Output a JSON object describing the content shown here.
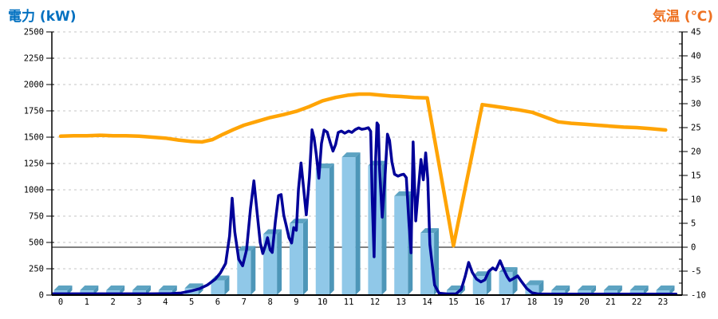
{
  "titles": {
    "left": "電力 (kW)",
    "right": "気温 (℃)"
  },
  "colors": {
    "left_title": "#0070C0",
    "right_title": "#EE7121",
    "power_line": "#000099",
    "temperature_line": "#FFA405",
    "bar_front": "#90C8E8",
    "bar_top": "#5DA3C2",
    "bar_side": "#4D96B8",
    "gridline": "#C6C6C6",
    "axis": "#000000",
    "tick_label": "#000000"
  },
  "chart_data": {
    "type": "combo",
    "title": "",
    "left_axis": {
      "title": "電力 (kW)",
      "unit": "kW",
      "min": 0,
      "max": 2500,
      "tick_step": 250,
      "ticks": [
        0,
        250,
        500,
        750,
        1000,
        1250,
        1500,
        1750,
        2000,
        2250,
        2500
      ],
      "gridlines": "dashed"
    },
    "right_axis": {
      "title": "気温 (℃)",
      "unit": "℃",
      "min": -10,
      "max": 45,
      "tick_step": 5,
      "ticks": [
        -10,
        -5,
        0,
        5,
        10,
        15,
        20,
        25,
        30,
        35,
        40,
        45
      ],
      "zero_reference_line": true
    },
    "x_axis": {
      "ticks": [
        0,
        1,
        2,
        3,
        4,
        5,
        6,
        7,
        8,
        9,
        10,
        11,
        12,
        13,
        14,
        15,
        16,
        17,
        18,
        19,
        20,
        21,
        22,
        23
      ]
    },
    "legend": "none",
    "series": [
      {
        "id": "power_bars",
        "type": "bar",
        "axis": "left",
        "unit": "kW",
        "categories": [
          0,
          1,
          2,
          3,
          4,
          5,
          6,
          7,
          8,
          9,
          10,
          11,
          12,
          13,
          14,
          15,
          16,
          17,
          18,
          19,
          20,
          21,
          22,
          23
        ],
        "values": [
          45,
          45,
          45,
          45,
          45,
          65,
          140,
          420,
          580,
          680,
          1205,
          1310,
          1230,
          940,
          590,
          45,
          180,
          220,
          95,
          45,
          45,
          45,
          45,
          45
        ]
      },
      {
        "id": "power_line",
        "type": "line",
        "axis": "left",
        "unit": "kW",
        "points": [
          [
            -0.3,
            12
          ],
          [
            0.5,
            12
          ],
          [
            1.5,
            12
          ],
          [
            2.5,
            12
          ],
          [
            3.5,
            12
          ],
          [
            4.2,
            14
          ],
          [
            4.6,
            20
          ],
          [
            5.0,
            40
          ],
          [
            5.3,
            60
          ],
          [
            5.6,
            95
          ],
          [
            5.9,
            150
          ],
          [
            6.1,
            210
          ],
          [
            6.3,
            300
          ],
          [
            6.45,
            560
          ],
          [
            6.55,
            920
          ],
          [
            6.65,
            600
          ],
          [
            6.8,
            340
          ],
          [
            6.95,
            278
          ],
          [
            7.1,
            430
          ],
          [
            7.25,
            820
          ],
          [
            7.38,
            1085
          ],
          [
            7.5,
            790
          ],
          [
            7.62,
            500
          ],
          [
            7.72,
            395
          ],
          [
            7.82,
            470
          ],
          [
            7.9,
            545
          ],
          [
            8.0,
            430
          ],
          [
            8.08,
            405
          ],
          [
            8.2,
            700
          ],
          [
            8.32,
            945
          ],
          [
            8.42,
            955
          ],
          [
            8.52,
            760
          ],
          [
            8.62,
            655
          ],
          [
            8.72,
            545
          ],
          [
            8.82,
            495
          ],
          [
            8.9,
            640
          ],
          [
            9.0,
            615
          ],
          [
            9.08,
            1000
          ],
          [
            9.18,
            1255
          ],
          [
            9.28,
            1010
          ],
          [
            9.38,
            762
          ],
          [
            9.5,
            1120
          ],
          [
            9.6,
            1570
          ],
          [
            9.68,
            1490
          ],
          [
            9.76,
            1340
          ],
          [
            9.86,
            1110
          ],
          [
            9.96,
            1440
          ],
          [
            10.06,
            1568
          ],
          [
            10.18,
            1548
          ],
          [
            10.3,
            1445
          ],
          [
            10.4,
            1368
          ],
          [
            10.5,
            1430
          ],
          [
            10.6,
            1545
          ],
          [
            10.72,
            1558
          ],
          [
            10.85,
            1538
          ],
          [
            11.0,
            1558
          ],
          [
            11.12,
            1545
          ],
          [
            11.25,
            1572
          ],
          [
            11.38,
            1588
          ],
          [
            11.5,
            1575
          ],
          [
            11.62,
            1580
          ],
          [
            11.75,
            1590
          ],
          [
            11.84,
            1555
          ],
          [
            11.9,
            900
          ],
          [
            11.97,
            364
          ],
          [
            12.03,
            1300
          ],
          [
            12.08,
            1635
          ],
          [
            12.13,
            1615
          ],
          [
            12.18,
            1190
          ],
          [
            12.28,
            740
          ],
          [
            12.38,
            1095
          ],
          [
            12.48,
            1528
          ],
          [
            12.56,
            1468
          ],
          [
            12.65,
            1265
          ],
          [
            12.75,
            1148
          ],
          [
            12.88,
            1130
          ],
          [
            13.0,
            1142
          ],
          [
            13.1,
            1148
          ],
          [
            13.2,
            1115
          ],
          [
            13.3,
            690
          ],
          [
            13.38,
            402
          ],
          [
            13.46,
            1455
          ],
          [
            13.56,
            705
          ],
          [
            13.66,
            1005
          ],
          [
            13.76,
            1288
          ],
          [
            13.85,
            1095
          ],
          [
            13.94,
            1350
          ],
          [
            14.02,
            1100
          ],
          [
            14.1,
            480
          ],
          [
            14.18,
            310
          ],
          [
            14.28,
            95
          ],
          [
            14.45,
            18
          ],
          [
            14.8,
            10
          ],
          [
            15.1,
            12
          ],
          [
            15.3,
            55
          ],
          [
            15.45,
            180
          ],
          [
            15.58,
            310
          ],
          [
            15.72,
            215
          ],
          [
            15.88,
            152
          ],
          [
            16.05,
            125
          ],
          [
            16.2,
            145
          ],
          [
            16.35,
            225
          ],
          [
            16.5,
            258
          ],
          [
            16.62,
            238
          ],
          [
            16.78,
            326
          ],
          [
            16.9,
            255
          ],
          [
            17.05,
            175
          ],
          [
            17.15,
            138
          ],
          [
            17.3,
            158
          ],
          [
            17.45,
            182
          ],
          [
            17.6,
            128
          ],
          [
            17.8,
            62
          ],
          [
            18.0,
            22
          ],
          [
            18.25,
            10
          ],
          [
            19.0,
            9
          ],
          [
            20.0,
            9
          ],
          [
            21.0,
            9
          ],
          [
            22.0,
            9
          ],
          [
            23.0,
            9
          ],
          [
            23.5,
            9
          ]
        ]
      },
      {
        "id": "temperature_line",
        "type": "line",
        "axis": "right",
        "unit": "℃",
        "points": [
          [
            0,
            23.2
          ],
          [
            0.5,
            23.3
          ],
          [
            1,
            23.3
          ],
          [
            1.5,
            23.4
          ],
          [
            2,
            23.3
          ],
          [
            2.5,
            23.3
          ],
          [
            3,
            23.2
          ],
          [
            3.5,
            23.0
          ],
          [
            4,
            22.8
          ],
          [
            4.5,
            22.4
          ],
          [
            5,
            22.1
          ],
          [
            5.4,
            22.0
          ],
          [
            5.8,
            22.5
          ],
          [
            6.2,
            23.6
          ],
          [
            6.6,
            24.6
          ],
          [
            7,
            25.5
          ],
          [
            7.5,
            26.3
          ],
          [
            8,
            27.1
          ],
          [
            8.5,
            27.7
          ],
          [
            9,
            28.4
          ],
          [
            9.5,
            29.4
          ],
          [
            10,
            30.6
          ],
          [
            10.5,
            31.3
          ],
          [
            11,
            31.8
          ],
          [
            11.4,
            32.0
          ],
          [
            11.8,
            32.0
          ],
          [
            12.2,
            31.8
          ],
          [
            12.6,
            31.6
          ],
          [
            13,
            31.5
          ],
          [
            13.5,
            31.3
          ],
          [
            14,
            31.2
          ],
          [
            15,
            0.3
          ],
          [
            16.1,
            29.8
          ],
          [
            16.5,
            29.5
          ],
          [
            17,
            29.1
          ],
          [
            17.5,
            28.7
          ],
          [
            18,
            28.2
          ],
          [
            18.5,
            27.2
          ],
          [
            19,
            26.2
          ],
          [
            19.5,
            25.9
          ],
          [
            20,
            25.7
          ],
          [
            20.5,
            25.5
          ],
          [
            21,
            25.3
          ],
          [
            21.5,
            25.1
          ],
          [
            22,
            25.0
          ],
          [
            22.5,
            24.8
          ],
          [
            23.1,
            24.5
          ]
        ]
      }
    ]
  }
}
